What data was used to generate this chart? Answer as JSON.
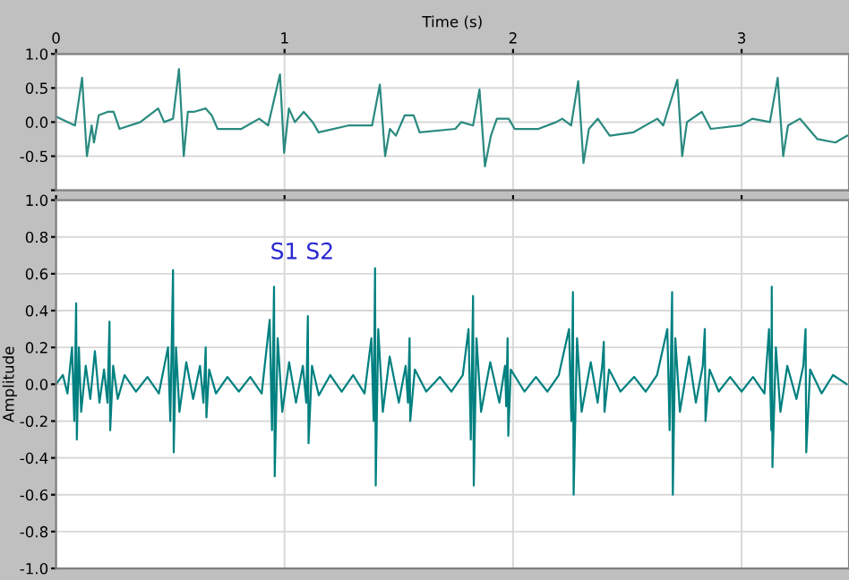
{
  "chart_data": [
    {
      "type": "line",
      "xlabel": "Time (s)",
      "xlim": [
        0,
        3.47
      ],
      "xticks": [
        0,
        1,
        2,
        3
      ],
      "ylim": [
        -1,
        1
      ],
      "yticks": [
        {
          "value": 1,
          "label": "1.0"
        },
        {
          "value": 0.5,
          "label": "0.5"
        },
        {
          "value": 0,
          "label": "0.0"
        },
        {
          "value": -0.5,
          "label": "-0.5"
        },
        {
          "value": -1,
          "label": null
        }
      ],
      "grid": true,
      "marker": "none",
      "line_style": "solid",
      "series": [
        {
          "color": "#2a8a80",
          "x": [
            0,
            0.083,
            0.114,
            0.135,
            0.156,
            0.166,
            0.187,
            0.226,
            0.252,
            0.278,
            0.369,
            0.447,
            0.473,
            0.512,
            0.538,
            0.559,
            0.577,
            0.603,
            0.655,
            0.681,
            0.707,
            0.811,
            0.889,
            0.928,
            0.98,
            0.998,
            1.019,
            1.045,
            1.084,
            1.123,
            1.149,
            1.279,
            1.383,
            1.417,
            1.44,
            1.461,
            1.487,
            1.526,
            1.565,
            1.591,
            1.747,
            1.773,
            1.825,
            1.853,
            1.877,
            1.903,
            1.929,
            1.981,
            2.007,
            2.111,
            2.189,
            2.215,
            2.254,
            2.285,
            2.308,
            2.332,
            2.371,
            2.423,
            2.527,
            2.631,
            2.657,
            2.719,
            2.74,
            2.761,
            2.826,
            2.865,
            2.995,
            3.047,
            3.124,
            3.158,
            3.182,
            3.203,
            3.255,
            3.332,
            3.41,
            3.462
          ],
          "values": [
            0.08,
            -0.05,
            0.65,
            -0.5,
            -0.05,
            -0.3,
            0.1,
            0.15,
            0.15,
            -0.1,
            0.0,
            0.2,
            0.0,
            0.05,
            0.78,
            -0.5,
            0.15,
            0.15,
            0.2,
            0.1,
            -0.1,
            -0.1,
            0.05,
            -0.05,
            0.7,
            -0.45,
            0.2,
            0.0,
            0.15,
            0.0,
            -0.15,
            -0.05,
            -0.05,
            0.55,
            -0.5,
            -0.1,
            -0.2,
            0.1,
            0.1,
            -0.15,
            -0.1,
            0.0,
            -0.05,
            0.48,
            -0.65,
            -0.2,
            0.05,
            0.05,
            -0.1,
            -0.1,
            0.0,
            0.05,
            -0.05,
            0.6,
            -0.6,
            -0.1,
            0.05,
            -0.2,
            -0.15,
            0.05,
            -0.05,
            0.62,
            -0.5,
            0.0,
            0.15,
            -0.1,
            -0.05,
            0.05,
            0.0,
            0.65,
            -0.5,
            -0.05,
            0.05,
            -0.25,
            -0.3,
            -0.2
          ]
        }
      ]
    },
    {
      "type": "line",
      "ylabel": "Amplitude",
      "annotations": [
        "S1 S2"
      ],
      "xlim": [
        0,
        3.47
      ],
      "xticks": [
        0,
        1,
        2,
        3
      ],
      "ylim": [
        -1,
        1
      ],
      "yticks": [
        {
          "value": 1,
          "label": "1.0"
        },
        {
          "value": 0.8,
          "label": "0.8"
        },
        {
          "value": 0.6,
          "label": "0.6"
        },
        {
          "value": 0.4,
          "label": "0.4"
        },
        {
          "value": 0.2,
          "label": "0.2"
        },
        {
          "value": 0,
          "label": "0.0"
        },
        {
          "value": -0.2,
          "label": "-0.2"
        },
        {
          "value": -0.4,
          "label": "-0.4"
        },
        {
          "value": -0.6,
          "label": "-0.6"
        },
        {
          "value": -0.8,
          "label": "-0.8"
        },
        {
          "value": -1,
          "label": "-1.0"
        }
      ],
      "tick_labels": "y",
      "grid": true,
      "marker": "none",
      "line_style": "solid",
      "series": [
        {
          "color": "#008080",
          "x": [
            0,
            0.03,
            0.05,
            0.07,
            0.08,
            0.088,
            0.091,
            0.1,
            0.11,
            0.13,
            0.15,
            0.17,
            0.19,
            0.21,
            0.225,
            0.234,
            0.237,
            0.25,
            0.27,
            0.3,
            0.35,
            0.4,
            0.45,
            0.49,
            0.5,
            0.512,
            0.515,
            0.525,
            0.54,
            0.57,
            0.6,
            0.63,
            0.645,
            0.655,
            0.658,
            0.67,
            0.7,
            0.75,
            0.8,
            0.85,
            0.9,
            0.935,
            0.945,
            0.954,
            0.957,
            0.97,
            0.99,
            1.02,
            1.05,
            1.08,
            1.095,
            1.102,
            1.105,
            1.12,
            1.15,
            1.2,
            1.25,
            1.3,
            1.35,
            1.38,
            1.39,
            1.396,
            1.399,
            1.41,
            1.43,
            1.46,
            1.5,
            1.53,
            1.54,
            1.547,
            1.55,
            1.57,
            1.62,
            1.68,
            1.73,
            1.78,
            1.805,
            1.815,
            1.825,
            1.828,
            1.84,
            1.86,
            1.9,
            1.94,
            1.965,
            1.97,
            1.976,
            1.979,
            1.99,
            2.05,
            2.1,
            2.15,
            2.2,
            2.245,
            2.255,
            2.262,
            2.265,
            2.28,
            2.3,
            2.34,
            2.37,
            2.39,
            2.397,
            2.4,
            2.42,
            2.47,
            2.53,
            2.58,
            2.63,
            2.675,
            2.685,
            2.696,
            2.699,
            2.71,
            2.73,
            2.77,
            2.8,
            2.83,
            2.839,
            2.842,
            2.86,
            2.9,
            2.95,
            3.0,
            3.05,
            3.1,
            3.12,
            3.13,
            3.132,
            3.135,
            3.15,
            3.17,
            3.2,
            3.24,
            3.27,
            3.28,
            3.283,
            3.3,
            3.35,
            3.4,
            3.46
          ],
          "values": [
            0.0,
            0.05,
            -0.05,
            0.2,
            -0.2,
            0.44,
            -0.3,
            0.2,
            -0.15,
            0.1,
            -0.08,
            0.18,
            -0.1,
            0.08,
            -0.1,
            0.34,
            -0.25,
            0.1,
            -0.08,
            0.05,
            -0.04,
            0.04,
            -0.05,
            0.2,
            -0.2,
            0.62,
            -0.37,
            0.2,
            -0.15,
            0.12,
            -0.08,
            0.1,
            -0.1,
            0.2,
            -0.18,
            0.08,
            -0.05,
            0.04,
            -0.04,
            0.04,
            -0.05,
            0.35,
            -0.25,
            0.53,
            -0.5,
            0.25,
            -0.15,
            0.12,
            -0.1,
            0.1,
            -0.1,
            0.37,
            -0.32,
            0.1,
            -0.06,
            0.05,
            -0.04,
            0.05,
            -0.05,
            0.25,
            -0.2,
            0.63,
            -0.55,
            0.3,
            -0.15,
            0.15,
            -0.1,
            0.1,
            -0.1,
            0.25,
            -0.2,
            0.08,
            -0.04,
            0.04,
            -0.04,
            0.05,
            0.3,
            -0.3,
            0.48,
            -0.55,
            0.25,
            -0.15,
            0.12,
            -0.1,
            0.1,
            -0.12,
            0.25,
            -0.28,
            0.08,
            -0.04,
            0.04,
            -0.04,
            0.05,
            0.3,
            -0.2,
            0.5,
            -0.6,
            0.25,
            -0.15,
            0.12,
            -0.1,
            0.1,
            0.23,
            -0.15,
            0.08,
            -0.04,
            0.04,
            -0.04,
            0.05,
            0.3,
            -0.25,
            0.5,
            -0.6,
            0.25,
            -0.15,
            0.15,
            -0.1,
            0.1,
            0.3,
            -0.2,
            0.08,
            -0.04,
            0.04,
            -0.04,
            0.04,
            -0.05,
            0.3,
            -0.25,
            0.53,
            -0.45,
            0.2,
            -0.15,
            0.1,
            -0.08,
            0.1,
            0.3,
            -0.37,
            0.08,
            -0.05,
            0.05,
            0.0
          ]
        }
      ]
    }
  ]
}
